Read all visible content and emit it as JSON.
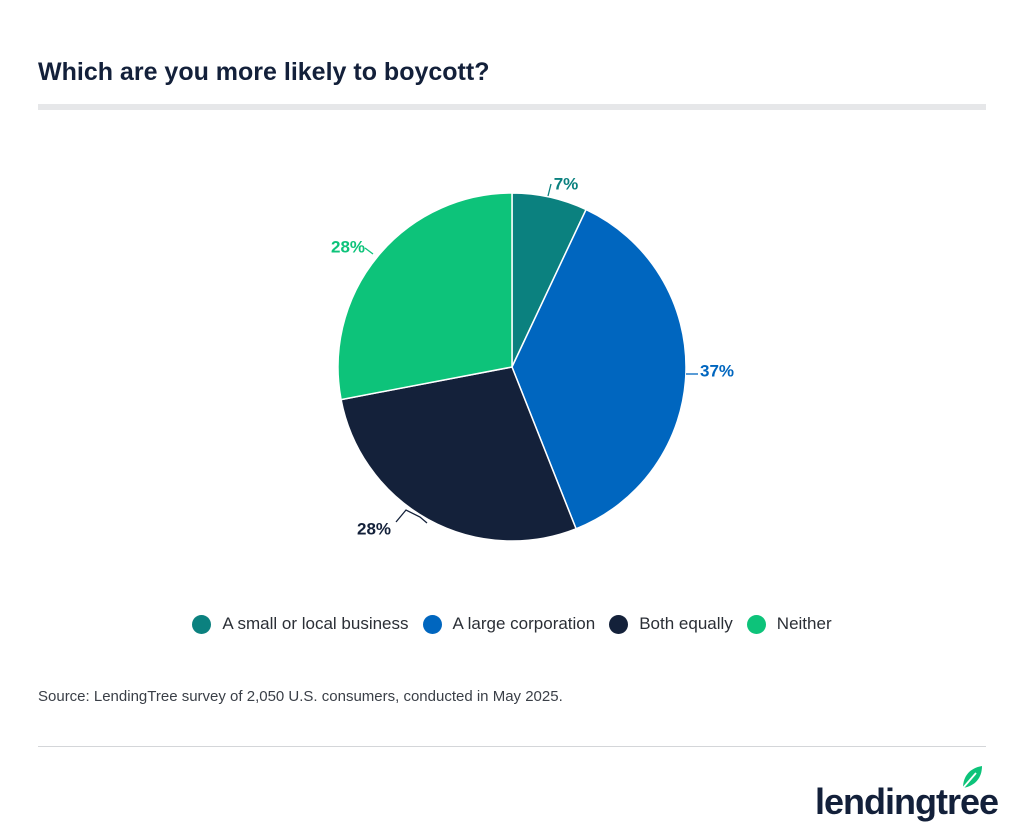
{
  "header": {
    "title": "Which are you more likely to boycott?"
  },
  "chart_data": {
    "type": "pie",
    "categories": [
      "A small or local business",
      "A large corporation",
      "Both equally",
      "Neither"
    ],
    "values": [
      7,
      37,
      28,
      28
    ],
    "data_labels": [
      "7%",
      "37%",
      "28%",
      "28%"
    ],
    "colors": [
      "#0b817f",
      "#0066bf",
      "#14213a",
      "#0dc37a"
    ],
    "label_colors": [
      "#0b817f",
      "#0066bf",
      "#14213a",
      "#0dc37a"
    ],
    "legend_position": "bottom",
    "start_angle": "top, clockwise"
  },
  "footer": {
    "source": "Source: LendingTree survey of 2,050 U.S. consumers, conducted in May 2025.",
    "logo_text": "lendingtree",
    "logo_icon": "leaf-icon"
  }
}
